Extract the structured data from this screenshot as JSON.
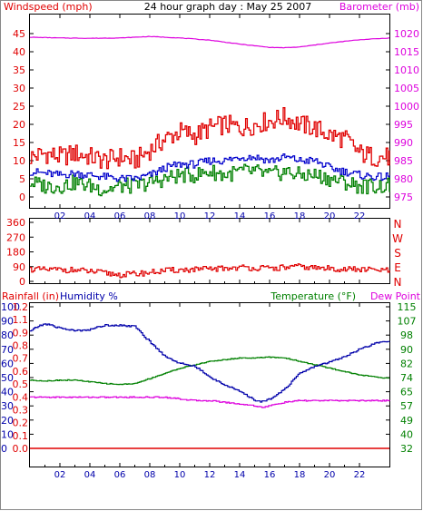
{
  "title": "24 hour graph day : May 25 2007",
  "colors": {
    "wind": "#e00000",
    "baro": "#dd00dd",
    "gust": "#008000",
    "avg": "#0000cc",
    "dir": "#e00000",
    "rain": "#e00000",
    "humidity": "#0000aa",
    "temperature": "#008000",
    "dewpoint": "#dd00dd",
    "frame": "#000000",
    "grid": "#000000"
  },
  "chart_data": [
    {
      "type": "line",
      "panel": "wind-baro",
      "left_axis_label": "Windspeed (mph)",
      "right_axis_label": "Barometer (mb)",
      "xlim": [
        0,
        24
      ],
      "x_ticks": [
        "02",
        "04",
        "06",
        "08",
        "10",
        "12",
        "14",
        "16",
        "18",
        "20",
        "22"
      ],
      "y_left_ticks": [
        "0",
        "5",
        "10",
        "15",
        "20",
        "25",
        "30",
        "35",
        "40",
        "45"
      ],
      "ylim_left": [
        0,
        45
      ],
      "y_right_ticks": [
        "975",
        "980",
        "985",
        "990",
        "995",
        "1000",
        "1005",
        "1010",
        "1015",
        "1020"
      ],
      "ylim_right": [
        975,
        1020
      ],
      "series": [
        {
          "role": "windspeed-high",
          "axis": "left",
          "x": [
            0,
            1,
            2,
            3,
            4,
            5,
            6,
            7,
            8,
            9,
            10,
            11,
            12,
            13,
            14,
            15,
            16,
            17,
            18,
            19,
            20,
            21,
            22,
            23,
            24
          ],
          "values": [
            11,
            12,
            11,
            12,
            11,
            10,
            11,
            10,
            13,
            16,
            18,
            17,
            19,
            20,
            19,
            20,
            21,
            22,
            20,
            19,
            17,
            16,
            12,
            11,
            11
          ]
        },
        {
          "role": "windspeed-average",
          "axis": "left",
          "x": [
            0,
            1,
            2,
            3,
            4,
            5,
            6,
            7,
            8,
            9,
            10,
            11,
            12,
            13,
            14,
            15,
            16,
            17,
            18,
            19,
            20,
            21,
            22,
            23,
            24
          ],
          "values": [
            7,
            6.5,
            6,
            6.5,
            6,
            5.5,
            5,
            5,
            6,
            8,
            9,
            9,
            10,
            10,
            11,
            11,
            10,
            11,
            10,
            10,
            8,
            7,
            6,
            5.5,
            5.5
          ]
        },
        {
          "role": "windspeed-low",
          "axis": "left",
          "x": [
            0,
            1,
            2,
            3,
            4,
            5,
            6,
            7,
            8,
            9,
            10,
            11,
            12,
            13,
            14,
            15,
            16,
            17,
            18,
            19,
            20,
            21,
            22,
            23,
            24
          ],
          "values": [
            4,
            3,
            3,
            4,
            3,
            2,
            3,
            3,
            4,
            5,
            6,
            6,
            7,
            6,
            7,
            7,
            6,
            7,
            6,
            6,
            5,
            4,
            3,
            3,
            3
          ]
        },
        {
          "role": "barometer",
          "axis": "right",
          "x": [
            0,
            2,
            4,
            6,
            8,
            10,
            12,
            14,
            16,
            17,
            18,
            20,
            22,
            24
          ],
          "values": [
            1019,
            1018.8,
            1018.7,
            1018.8,
            1019.2,
            1018.8,
            1018.2,
            1017.1,
            1016.2,
            1016.1,
            1016.3,
            1017.4,
            1018.3,
            1018.8
          ]
        }
      ]
    },
    {
      "type": "scatter",
      "panel": "wind-direction",
      "xlim": [
        0,
        24
      ],
      "y_left_ticks": [
        "0",
        "90",
        "180",
        "270",
        "360"
      ],
      "ylim": [
        0,
        360
      ],
      "y_right_labels": [
        "N",
        "W",
        "S",
        "E",
        "N"
      ],
      "x": [
        0,
        1,
        2,
        3,
        4,
        5,
        6,
        7,
        8,
        9,
        10,
        11,
        12,
        13,
        14,
        15,
        16,
        17,
        18,
        19,
        20,
        21,
        22,
        23,
        24
      ],
      "values": [
        75,
        70,
        72,
        68,
        60,
        50,
        40,
        45,
        55,
        65,
        70,
        72,
        75,
        80,
        85,
        82,
        78,
        85,
        90,
        82,
        78,
        75,
        72,
        70,
        65
      ]
    },
    {
      "type": "line",
      "panel": "rain-humidity-temperature",
      "labels": {
        "rain": "Rainfall (in)",
        "humidity": "Humidity %",
        "temperature": "Temperature (°F)",
        "dewpoint": "Dew Point"
      },
      "xlim": [
        0,
        24
      ],
      "x_ticks": [
        "02",
        "04",
        "06",
        "08",
        "10",
        "12",
        "14",
        "16",
        "18",
        "20",
        "22"
      ],
      "rain_ticks": [
        "0.0",
        "0.1",
        "0.2",
        "0.3",
        "0.4",
        "0.5",
        "0.6",
        "0.7",
        "0.8",
        "0.9",
        "1.1",
        "1.2"
      ],
      "humidity_ticks": [
        "0",
        "10",
        "20",
        "30",
        "40",
        "50",
        "60",
        "70",
        "80",
        "90",
        "100"
      ],
      "humidity_lim": [
        0,
        100
      ],
      "temperature_ticks": [
        "32",
        "40",
        "49",
        "57",
        "65",
        "74",
        "82",
        "90",
        "98",
        "107",
        "115"
      ],
      "temperature_lim": [
        32,
        115
      ],
      "series": [
        {
          "role": "humidity",
          "axis": "humidity",
          "x": [
            0,
            0.5,
            1,
            2,
            3,
            4,
            5,
            6,
            7,
            8,
            9,
            10,
            11,
            12,
            13,
            14,
            15,
            15.5,
            16,
            17,
            18,
            19,
            20,
            21,
            22,
            23,
            24
          ],
          "values": [
            83,
            86,
            88,
            85,
            83,
            84,
            87,
            87,
            86,
            75,
            65,
            60,
            58,
            50,
            45,
            40,
            34,
            33,
            35,
            42,
            53,
            58,
            61,
            65,
            70,
            74,
            76
          ]
        },
        {
          "role": "temperature",
          "axis": "temperature",
          "x": [
            0,
            1,
            2,
            3,
            4,
            5,
            6,
            7,
            8,
            9,
            10,
            11,
            12,
            13,
            14,
            15,
            16,
            17,
            18,
            19,
            20,
            21,
            22,
            23,
            24
          ],
          "values": [
            72,
            71.5,
            72,
            72,
            71,
            70,
            69.5,
            70,
            73,
            76,
            79,
            81,
            83,
            84,
            85,
            85,
            85.5,
            85,
            83,
            81,
            79,
            77,
            75,
            74,
            73
          ]
        },
        {
          "role": "dewpoint",
          "axis": "temperature",
          "x": [
            0,
            1,
            2,
            3,
            4,
            5,
            6,
            7,
            8,
            9,
            10,
            11,
            12,
            13,
            14,
            15,
            15.5,
            16,
            17,
            18,
            19,
            20,
            21,
            22,
            23,
            24
          ],
          "values": [
            62,
            62,
            62,
            62,
            62,
            62,
            62,
            62,
            62,
            62,
            61,
            60,
            60,
            59,
            58,
            57,
            56,
            57,
            59,
            60,
            60,
            60,
            60,
            60,
            60,
            60
          ]
        },
        {
          "role": "rainfall",
          "axis": "rain",
          "x": [
            0,
            24
          ],
          "values": [
            0,
            0
          ]
        }
      ]
    }
  ]
}
